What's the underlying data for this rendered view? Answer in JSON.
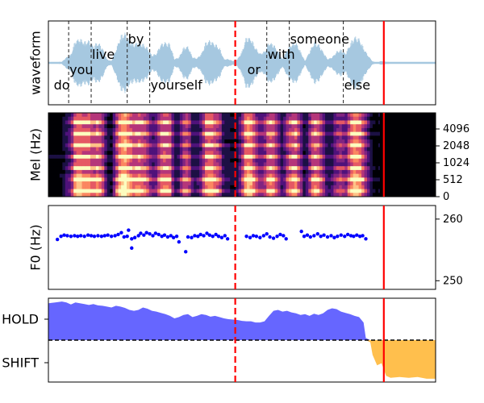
{
  "chart_data": [
    {
      "type": "line",
      "panel": "waveform",
      "ylabel": "waveform",
      "words": [
        {
          "text": "do",
          "start": 0.1,
          "end": 0.45
        },
        {
          "text": "you",
          "start": 0.45,
          "end": 0.95
        },
        {
          "text": "live",
          "start": 0.95,
          "end": 1.75
        },
        {
          "text": "by",
          "start": 1.75,
          "end": 2.25
        },
        {
          "text": "yourself",
          "start": 2.25,
          "end": 4.4
        },
        {
          "text": "or",
          "start": 4.4,
          "end": 4.85
        },
        {
          "text": "with",
          "start": 4.85,
          "end": 5.35
        },
        {
          "text": "someone",
          "start": 5.35,
          "end": 6.55
        },
        {
          "text": "else",
          "start": 6.55,
          "end": 7.25
        }
      ],
      "word_boundaries": [
        0.45,
        0.95,
        1.75,
        2.25,
        4.85,
        5.35,
        6.55
      ],
      "envelope": {
        "x": [
          0.0,
          0.3,
          0.4,
          0.5,
          0.6,
          0.7,
          0.8,
          0.9,
          1.0,
          1.1,
          1.2,
          1.3,
          1.4,
          1.5,
          1.6,
          1.7,
          1.8,
          1.9,
          2.0,
          2.1,
          2.2,
          2.3,
          2.4,
          2.5,
          2.6,
          2.7,
          2.8,
          2.9,
          3.0,
          3.1,
          3.2,
          3.3,
          3.4,
          3.5,
          3.6,
          3.7,
          3.8,
          3.9,
          4.0,
          4.1,
          4.2,
          4.3,
          4.4,
          4.5,
          4.6,
          4.7,
          4.8,
          4.9,
          5.0,
          5.1,
          5.2,
          5.3,
          5.4,
          5.5,
          5.6,
          5.7,
          5.8,
          5.9,
          6.0,
          6.1,
          6.2,
          6.3,
          6.4,
          6.5,
          6.6,
          6.7,
          6.8,
          6.9,
          7.0,
          7.1,
          7.2,
          7.3,
          7.4,
          7.6,
          8.6
        ],
        "amp": [
          0.02,
          0.03,
          0.15,
          0.22,
          0.6,
          0.65,
          0.55,
          0.6,
          0.45,
          0.55,
          0.4,
          0.1,
          0.05,
          0.35,
          0.7,
          0.8,
          0.6,
          0.5,
          0.55,
          0.5,
          0.4,
          0.2,
          0.25,
          0.5,
          0.55,
          0.5,
          0.1,
          0.15,
          0.4,
          0.45,
          0.15,
          0.12,
          0.25,
          0.55,
          0.6,
          0.5,
          0.4,
          0.1,
          0.1,
          0.05,
          0.1,
          0.3,
          0.7,
          0.65,
          0.4,
          0.25,
          0.3,
          0.55,
          0.5,
          0.3,
          0.1,
          0.35,
          0.5,
          0.55,
          0.3,
          0.05,
          0.3,
          0.55,
          0.5,
          0.3,
          0.1,
          0.15,
          0.3,
          0.35,
          0.25,
          0.5,
          0.7,
          0.65,
          0.4,
          0.2,
          0.04,
          0.02,
          0.05,
          0.02,
          0.02
        ]
      }
    },
    {
      "type": "heatmap",
      "panel": "mel",
      "ylabel": "Mel (Hz)",
      "yticks": [
        "0",
        "512",
        "1024",
        "2048",
        "4096"
      ],
      "silence_after": 7.45,
      "colormap": "magma"
    },
    {
      "type": "scatter",
      "panel": "f0",
      "ylabel": "F0 (Hz)",
      "yticks": [
        250,
        260
      ],
      "ylim": [
        248.6,
        262.2
      ],
      "series": [
        {
          "color": "#0000ff",
          "points": [
            [
              0.2,
              256.7
            ],
            [
              0.28,
              257.2
            ],
            [
              0.35,
              257.4
            ],
            [
              0.42,
              257.3
            ],
            [
              0.5,
              257.2
            ],
            [
              0.58,
              257.3
            ],
            [
              0.65,
              257.2
            ],
            [
              0.72,
              257.3
            ],
            [
              0.8,
              257.2
            ],
            [
              0.88,
              257.4
            ],
            [
              0.95,
              257.3
            ],
            [
              1.02,
              257.2
            ],
            [
              1.1,
              257.3
            ],
            [
              1.18,
              257.2
            ],
            [
              1.25,
              257.3
            ],
            [
              1.32,
              257.4
            ],
            [
              1.4,
              257.2
            ],
            [
              1.48,
              257.3
            ],
            [
              1.55,
              257.5
            ],
            [
              1.62,
              257.8
            ],
            [
              1.68,
              257.1
            ],
            [
              1.75,
              257.2
            ],
            [
              1.78,
              258.2
            ],
            [
              1.85,
              256.8
            ],
            [
              1.85,
              255.3
            ],
            [
              1.92,
              257.0
            ],
            [
              2.0,
              257.3
            ],
            [
              2.05,
              257.7
            ],
            [
              2.12,
              257.4
            ],
            [
              2.18,
              257.8
            ],
            [
              2.25,
              257.6
            ],
            [
              2.32,
              257.3
            ],
            [
              2.38,
              257.7
            ],
            [
              2.45,
              257.5
            ],
            [
              2.52,
              257.2
            ],
            [
              2.58,
              257.4
            ],
            [
              2.65,
              257.1
            ],
            [
              2.72,
              257.3
            ],
            [
              2.78,
              257.0
            ],
            [
              2.85,
              257.2
            ],
            [
              2.9,
              256.3
            ],
            [
              3.05,
              254.7
            ],
            [
              3.1,
              257.1
            ],
            [
              3.18,
              257.0
            ],
            [
              3.25,
              257.3
            ],
            [
              3.32,
              257.2
            ],
            [
              3.38,
              257.5
            ],
            [
              3.45,
              257.3
            ],
            [
              3.52,
              257.7
            ],
            [
              3.58,
              257.4
            ],
            [
              3.65,
              257.2
            ],
            [
              3.72,
              257.5
            ],
            [
              3.78,
              257.2
            ],
            [
              3.85,
              257.0
            ],
            [
              3.92,
              257.3
            ],
            [
              3.98,
              256.8
            ],
            [
              4.4,
              257.2
            ],
            [
              4.48,
              257.0
            ],
            [
              4.55,
              257.3
            ],
            [
              4.62,
              257.2
            ],
            [
              4.7,
              257.0
            ],
            [
              4.78,
              257.3
            ],
            [
              4.85,
              257.6
            ],
            [
              4.92,
              257.1
            ],
            [
              5.0,
              256.9
            ],
            [
              5.08,
              257.2
            ],
            [
              5.15,
              257.5
            ],
            [
              5.22,
              257.3
            ],
            [
              5.28,
              256.8
            ],
            [
              5.62,
              258.0
            ],
            [
              5.68,
              257.2
            ],
            [
              5.75,
              257.4
            ],
            [
              5.82,
              257.1
            ],
            [
              5.9,
              257.3
            ],
            [
              5.98,
              257.6
            ],
            [
              6.05,
              257.2
            ],
            [
              6.12,
              257.4
            ],
            [
              6.2,
              257.1
            ],
            [
              6.28,
              257.3
            ],
            [
              6.35,
              257.0
            ],
            [
              6.42,
              257.2
            ],
            [
              6.5,
              257.4
            ],
            [
              6.58,
              257.2
            ],
            [
              6.65,
              257.5
            ],
            [
              6.72,
              257.3
            ],
            [
              6.78,
              257.2
            ],
            [
              6.85,
              257.4
            ],
            [
              6.92,
              257.2
            ],
            [
              6.98,
              257.3
            ],
            [
              7.05,
              256.8
            ]
          ]
        }
      ]
    },
    {
      "type": "area",
      "panel": "turn",
      "ytick_labels": [
        "HOLD",
        "SHIFT"
      ],
      "ylim": [
        -1.0,
        1.0
      ],
      "threshold": 0,
      "colors": {
        "hold": "#6666ff",
        "shift": "#ffbf4d"
      },
      "x": [
        0.0,
        0.15,
        0.3,
        0.4,
        0.5,
        0.6,
        0.7,
        0.8,
        0.9,
        1.0,
        1.1,
        1.2,
        1.3,
        1.4,
        1.5,
        1.6,
        1.7,
        1.8,
        1.9,
        2.0,
        2.1,
        2.2,
        2.3,
        2.4,
        2.5,
        2.6,
        2.7,
        2.8,
        2.9,
        3.0,
        3.1,
        3.2,
        3.3,
        3.4,
        3.5,
        3.6,
        3.7,
        3.8,
        3.9,
        4.0,
        4.1,
        4.2,
        4.3,
        4.4,
        4.5,
        4.6,
        4.7,
        4.8,
        4.9,
        5.0,
        5.1,
        5.2,
        5.3,
        5.4,
        5.5,
        5.6,
        5.7,
        5.8,
        5.9,
        6.0,
        6.1,
        6.2,
        6.3,
        6.4,
        6.5,
        6.6,
        6.7,
        6.8,
        6.9,
        7.0,
        7.05,
        7.15,
        7.2,
        7.3,
        7.4,
        7.5,
        7.6,
        7.8,
        8.0,
        8.2,
        8.4,
        8.6
      ],
      "y": [
        0.88,
        0.9,
        0.92,
        0.9,
        0.85,
        0.9,
        0.88,
        0.86,
        0.84,
        0.86,
        0.83,
        0.82,
        0.8,
        0.78,
        0.82,
        0.8,
        0.77,
        0.72,
        0.7,
        0.72,
        0.78,
        0.75,
        0.7,
        0.68,
        0.65,
        0.62,
        0.58,
        0.52,
        0.55,
        0.6,
        0.62,
        0.55,
        0.58,
        0.62,
        0.6,
        0.56,
        0.58,
        0.55,
        0.52,
        0.5,
        0.49,
        0.48,
        0.46,
        0.45,
        0.45,
        0.42,
        0.42,
        0.45,
        0.58,
        0.7,
        0.72,
        0.68,
        0.7,
        0.66,
        0.64,
        0.6,
        0.62,
        0.58,
        0.63,
        0.6,
        0.64,
        0.72,
        0.76,
        0.74,
        0.68,
        0.65,
        0.62,
        0.58,
        0.55,
        0.42,
        0.05,
        -0.05,
        -0.35,
        -0.6,
        -0.55,
        -0.85,
        -0.9,
        -0.88,
        -0.9,
        -0.88,
        -0.92,
        -0.92
      ]
    }
  ],
  "markers": {
    "dashed_red_at": 4.15,
    "solid_red_at": 7.45,
    "x_range": [
      0,
      8.6
    ]
  }
}
